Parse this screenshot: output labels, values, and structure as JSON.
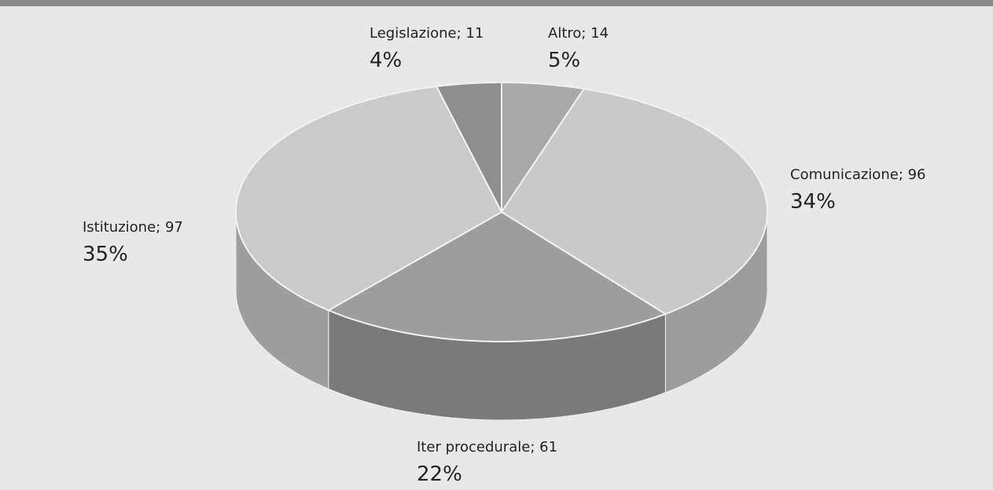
{
  "chart_data": {
    "type": "pie",
    "categories": [
      "Altro",
      "Comunicazione",
      "Iter procedurale",
      "Istituzione",
      "Legislazione"
    ],
    "values": [
      14,
      96,
      61,
      97,
      11
    ],
    "separator": "; ",
    "percent_labels": [
      "5%",
      "34%",
      "22%",
      "35%",
      "4%"
    ],
    "colors": [
      "#a9a9a9",
      "#c9c9c9",
      "#9d9d9d",
      "#cacaca",
      "#8e8e8e"
    ]
  }
}
